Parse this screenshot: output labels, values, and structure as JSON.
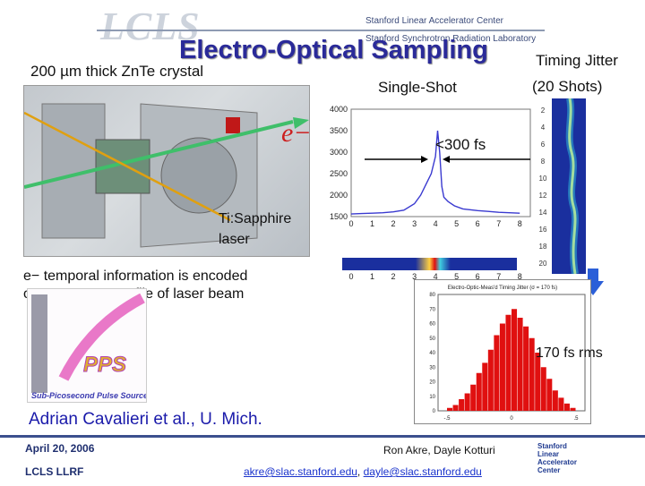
{
  "header": {
    "logo": "LCLS",
    "org1": "Stanford Linear Accelerator Center",
    "org2": "Stanford Synchrotron Radiation Laboratory"
  },
  "title": "Electro-Optical Sampling",
  "crystal_label": "200 µm thick ZnTe crystal",
  "single_shot": "Single-Shot",
  "jitter_line1": "Timing Jitter",
  "jitter_line2": "(20 Shots)",
  "e_label": "e−",
  "fs_label": "<300 fs",
  "laser_line1": "Ti:Sapphire",
  "laser_line2": "laser",
  "temporal_line1": "e− temporal information is encoded",
  "temporal_line2": "on transverse profile of laser beam",
  "pps_label": "Sub-Picosecond Pulse Source",
  "pps_logo": "PPS",
  "rms_label": "170 fs rms",
  "hist_title": "Electro-Optic-Meas'd Timing Jitter (σ = 170 fs)",
  "authors": "Adrian Cavalieri et al., U. Mich.",
  "footer": {
    "date": "April 20, 2006",
    "meeting": "LCLS LLRF",
    "names": "Ron Akre, Dayle Kotturi",
    "email1": "akre@slac.stanford.edu",
    "email_sep": ", ",
    "email2": "dayle@slac.stanford.edu",
    "logo_line1": "Stanford",
    "logo_line2": "Linear",
    "logo_line3": "Accelerator",
    "logo_line4": "Center"
  },
  "colors": {
    "title": "#2a2a99",
    "accent": "#3c4f8e",
    "trace": "#3a3ad0",
    "hist": "#e01010"
  },
  "chart_data": [
    {
      "type": "line",
      "title": "",
      "xlabel": "",
      "ylabel": "",
      "xlim": [
        0,
        8.5
      ],
      "ylim": [
        1500,
        4000
      ],
      "yticks": [
        1500,
        2000,
        2500,
        3000,
        3500,
        4000
      ],
      "xticks": [
        0,
        1,
        2,
        3,
        4,
        5,
        6,
        7,
        8
      ],
      "series": [
        {
          "x": [
            0,
            0.5,
            1,
            1.5,
            2,
            2.5,
            3,
            3.3,
            3.6,
            3.8,
            4.0,
            4.1,
            4.2,
            4.3,
            4.4,
            4.6,
            4.9,
            5.3,
            6,
            6.5,
            7,
            7.5,
            8
          ],
          "values": [
            1560,
            1570,
            1580,
            1590,
            1610,
            1650,
            1800,
            2000,
            2300,
            2500,
            2900,
            3500,
            3000,
            2200,
            1950,
            1850,
            1750,
            1680,
            1640,
            1620,
            1600,
            1590,
            1580
          ]
        }
      ]
    },
    {
      "type": "bar",
      "title": "Electro-Optic-Meas'd Timing Jitter (σ = 170 fs)",
      "ylim": [
        0,
        80
      ],
      "yticks": [
        0,
        10,
        20,
        30,
        40,
        50,
        60,
        70,
        80
      ],
      "xticks": [
        "-.5",
        "0",
        ".5"
      ],
      "values": [
        2,
        4,
        8,
        12,
        18,
        26,
        33,
        42,
        52,
        60,
        66,
        70,
        64,
        58,
        50,
        40,
        30,
        22,
        14,
        9,
        5,
        2
      ]
    }
  ]
}
